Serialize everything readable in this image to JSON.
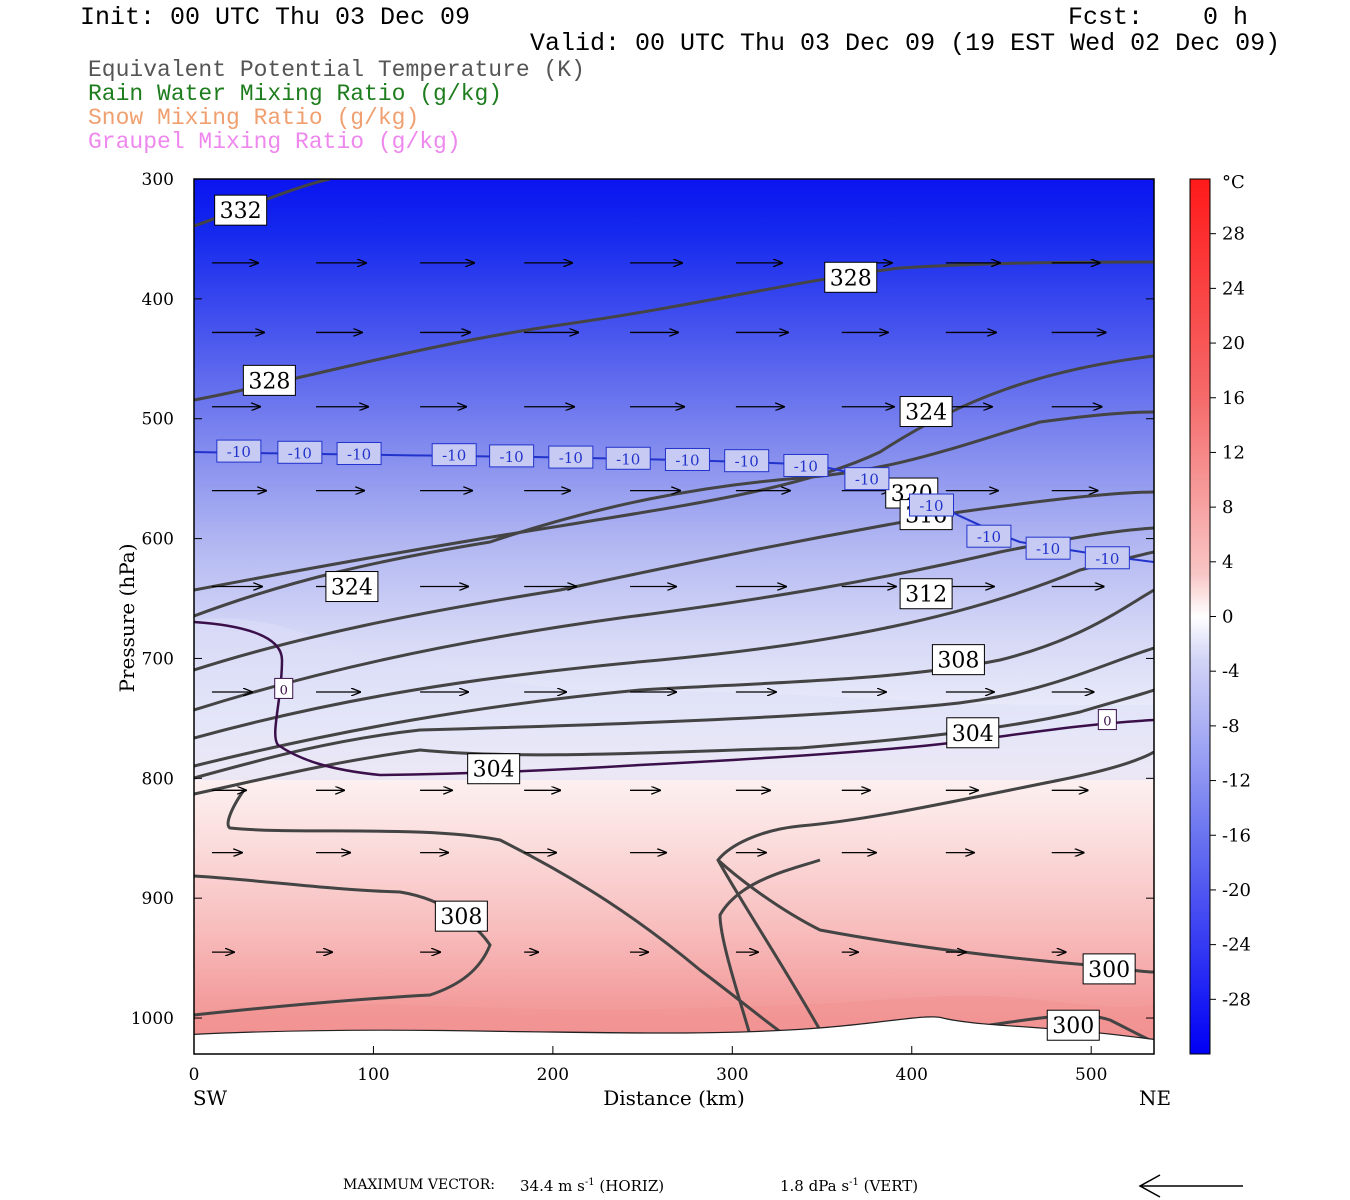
{
  "header": {
    "init": "Init: 00 UTC Thu 03 Dec 09",
    "fcst": "Fcst:    0 h",
    "valid": "Valid: 00 UTC Thu 03 Dec 09 (19 EST Wed 02 Dec 09)"
  },
  "legend": [
    {
      "text": "Equivalent Potential Temperature (K)",
      "color": "#555555"
    },
    {
      "text": "Rain Water Mixing Ratio (g/kg)",
      "color": "#1e7d1e"
    },
    {
      "text": "Snow Mixing Ratio (g/kg)",
      "color": "#f0a070"
    },
    {
      "text": "Graupel Mixing Ratio (g/kg)",
      "color": "#ee88ee"
    }
  ],
  "chart_data": {
    "type": "heatmap",
    "xlabel": "Distance (km)",
    "ylabel": "Pressure (hPa)",
    "xlim": [
      0,
      535
    ],
    "ylim": [
      1030,
      300
    ],
    "x_ticks": [
      0,
      100,
      200,
      300,
      400,
      500
    ],
    "y_ticks": [
      300,
      400,
      500,
      600,
      700,
      800,
      900,
      1000
    ],
    "x_end_labels": {
      "left": "SW",
      "right": "NE"
    },
    "colorbar": {
      "unit": "°C",
      "levels": [
        28,
        24,
        20,
        16,
        12,
        8,
        4,
        0,
        -4,
        -8,
        -12,
        -16,
        -20,
        -24,
        -28
      ],
      "range": [
        -32,
        32
      ]
    },
    "theta_e_labels": [
      {
        "text": "332",
        "x": 26,
        "p": 326
      },
      {
        "text": "328",
        "x": 366,
        "p": 382
      },
      {
        "text": "328",
        "x": 42,
        "p": 468
      },
      {
        "text": "324",
        "x": 408,
        "p": 494
      },
      {
        "text": "320",
        "x": 400,
        "p": 562
      },
      {
        "text": "316",
        "x": 408,
        "p": 580
      },
      {
        "text": "324",
        "x": 88,
        "p": 640
      },
      {
        "text": "312",
        "x": 408,
        "p": 646
      },
      {
        "text": "308",
        "x": 426,
        "p": 701
      },
      {
        "text": "304",
        "x": 434,
        "p": 762
      },
      {
        "text": "304",
        "x": 167,
        "p": 792
      },
      {
        "text": "308",
        "x": 149,
        "p": 915
      },
      {
        "text": "300",
        "x": 510,
        "p": 959
      },
      {
        "text": "300",
        "x": 490,
        "p": 1006
      }
    ],
    "temp_contour_labels": [
      {
        "text": "-10",
        "x": 25,
        "p": 527
      },
      {
        "text": "-10",
        "x": 59,
        "p": 528
      },
      {
        "text": "-10",
        "x": 92,
        "p": 529
      },
      {
        "text": "-10",
        "x": 145,
        "p": 530
      },
      {
        "text": "-10",
        "x": 177,
        "p": 531
      },
      {
        "text": "-10",
        "x": 210,
        "p": 532
      },
      {
        "text": "-10",
        "x": 242,
        "p": 533
      },
      {
        "text": "-10",
        "x": 275,
        "p": 534
      },
      {
        "text": "-10",
        "x": 308,
        "p": 535
      },
      {
        "text": "-10",
        "x": 341,
        "p": 539
      },
      {
        "text": "-10",
        "x": 375,
        "p": 550
      },
      {
        "text": "-10",
        "x": 411,
        "p": 572
      },
      {
        "text": "-10",
        "x": 443,
        "p": 598
      },
      {
        "text": "-10",
        "x": 476,
        "p": 608
      },
      {
        "text": "-10",
        "x": 509,
        "p": 616
      },
      {
        "text": "0",
        "x": 50,
        "p": 725
      },
      {
        "text": "0",
        "x": 509,
        "p": 751
      }
    ],
    "wind_levels_hpa": [
      370,
      428,
      490,
      560,
      640,
      728,
      810,
      862,
      945
    ]
  },
  "footer": {
    "max_vector_label": "MAXIMUM VECTOR:",
    "horiz_value": "34.4 m s",
    "horiz_exp": "-1",
    "horiz_tag": "(HORIZ)",
    "vert_value": "1.8 dPa s",
    "vert_exp": "-1",
    "vert_tag": "(VERT)"
  }
}
